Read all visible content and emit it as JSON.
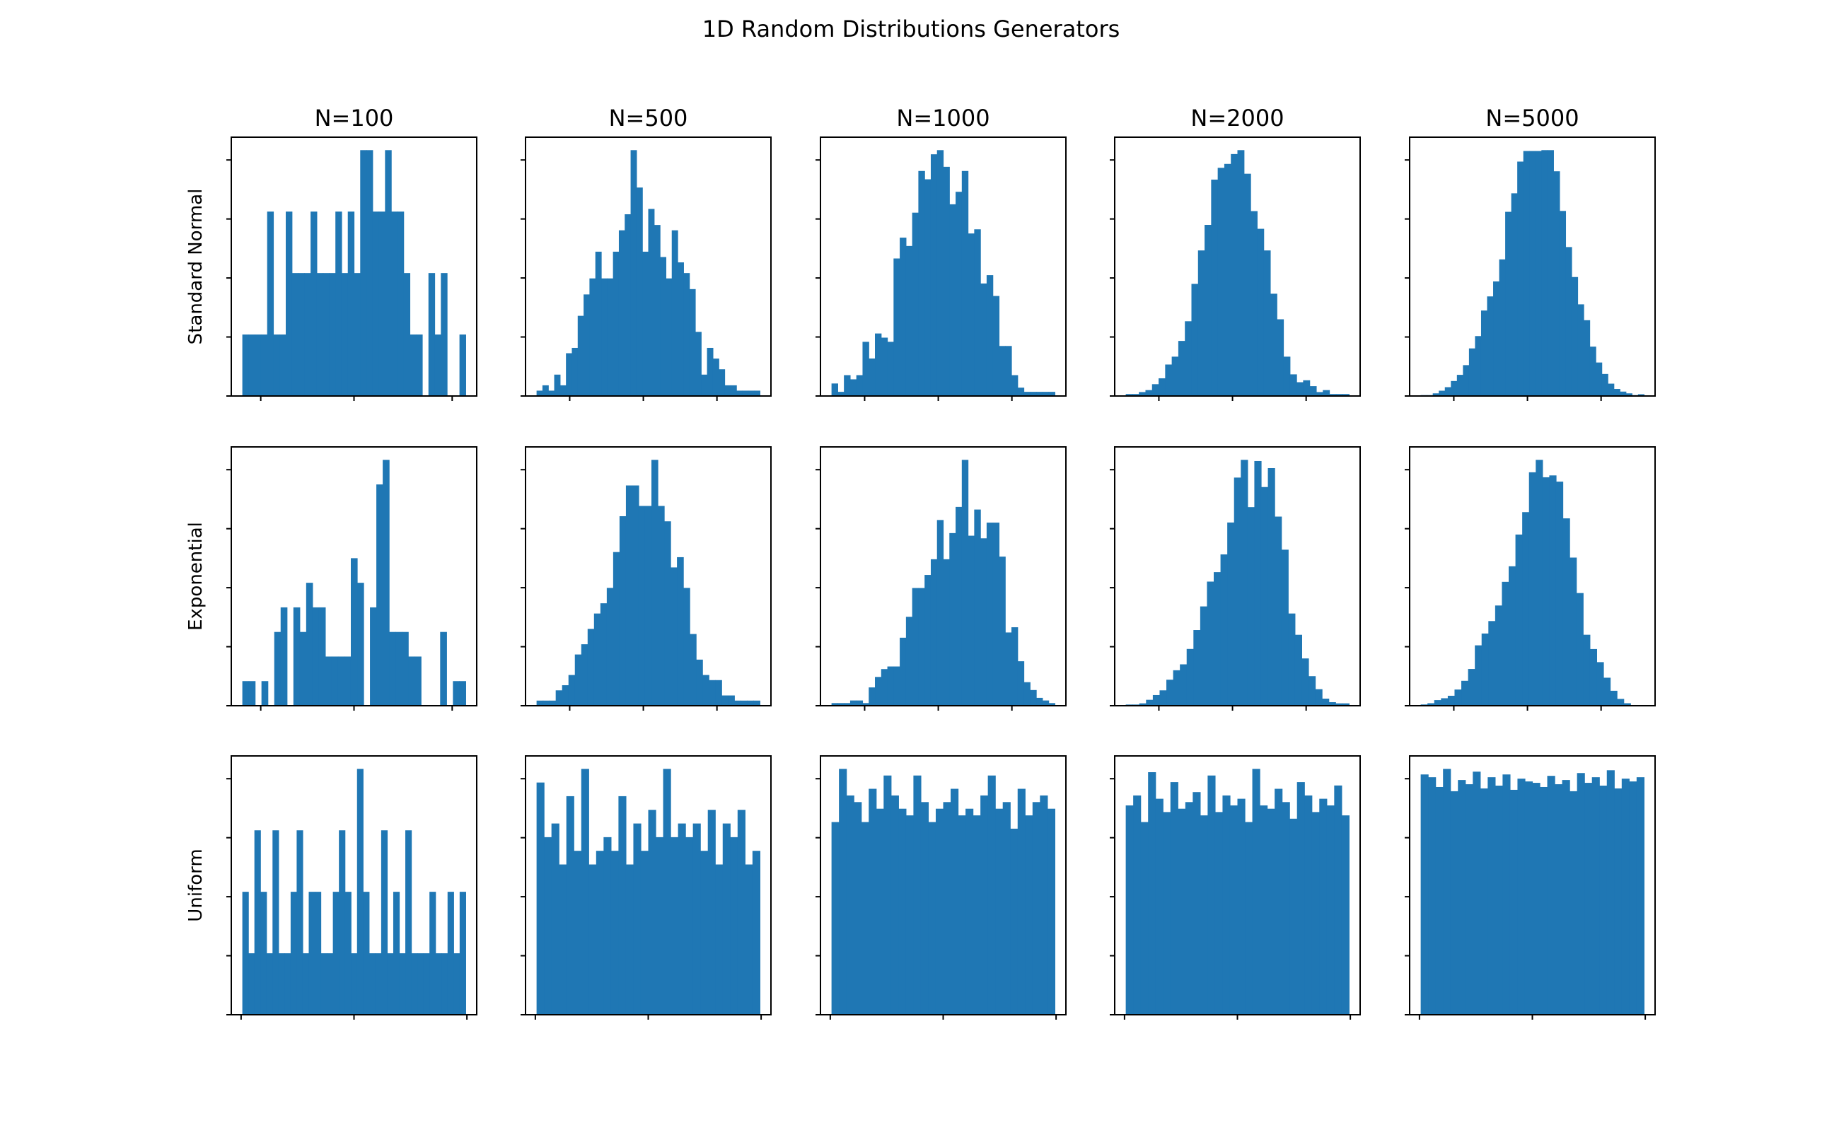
{
  "title": "1D Random Distributions Generators",
  "column_titles": [
    "N=100",
    "N=500",
    "N=1000",
    "N=2000",
    "N=5000"
  ],
  "row_labels": [
    "Standard Normal",
    "Exponential",
    "Uniform"
  ],
  "colors": {
    "bar": "#1f77b4",
    "axis": "#000000"
  },
  "chart_data": [
    {
      "type": "bar",
      "row": 0,
      "col": 0,
      "title": "N=100",
      "ylabel": "Standard Normal",
      "counts": [
        1,
        1,
        1,
        1,
        3,
        1,
        1,
        3,
        2,
        2,
        2,
        3,
        2,
        2,
        2,
        3,
        2,
        3,
        2,
        4,
        4,
        3,
        3,
        4,
        3,
        3,
        2,
        1,
        1,
        0,
        2,
        1,
        2,
        0,
        0,
        1
      ]
    },
    {
      "type": "bar",
      "row": 0,
      "col": 1,
      "title": "N=500",
      "ylabel": "Standard Normal",
      "counts": [
        1,
        2,
        1,
        4,
        2,
        8,
        9,
        15,
        19,
        22,
        27,
        22,
        22,
        27,
        31,
        34,
        46,
        39,
        27,
        35,
        32,
        26,
        22,
        31,
        25,
        23,
        20,
        12,
        4,
        9,
        7,
        5,
        2,
        2,
        1,
        1,
        1,
        1
      ]
    },
    {
      "type": "bar",
      "row": 0,
      "col": 2,
      "title": "N=1000",
      "ylabel": "Standard Normal",
      "counts": [
        3,
        1,
        5,
        4,
        5,
        13,
        9,
        15,
        14,
        13,
        33,
        38,
        36,
        44,
        54,
        52,
        58,
        59,
        55,
        46,
        49,
        54,
        39,
        40,
        27,
        29,
        24,
        12,
        12,
        5,
        2,
        1,
        1,
        1,
        1,
        1
      ]
    },
    {
      "type": "bar",
      "row": 0,
      "col": 3,
      "title": "N=2000",
      "ylabel": "Standard Normal",
      "counts": [
        1,
        1,
        2,
        3,
        6,
        9,
        16,
        20,
        28,
        38,
        57,
        74,
        87,
        110,
        116,
        118,
        123,
        125,
        113,
        94,
        85,
        74,
        52,
        39,
        20,
        11,
        7,
        8,
        5,
        2,
        3,
        1,
        1,
        1
      ]
    },
    {
      "type": "bar",
      "row": 0,
      "col": 4,
      "title": "N=5000",
      "ylabel": "Standard Normal",
      "counts": [
        1,
        1,
        3,
        6,
        10,
        17,
        24,
        35,
        54,
        68,
        97,
        113,
        130,
        155,
        209,
        230,
        266,
        278,
        278,
        278,
        279,
        279,
        255,
        210,
        169,
        135,
        104,
        86,
        56,
        38,
        25,
        14,
        8,
        5,
        3,
        1,
        2
      ]
    },
    {
      "type": "bar",
      "row": 1,
      "col": 0,
      "title": "N=100",
      "ylabel": "Exponential",
      "counts": [
        1,
        1,
        0,
        1,
        0,
        3,
        4,
        0,
        4,
        3,
        5,
        4,
        4,
        2,
        2,
        2,
        2,
        6,
        5,
        0,
        4,
        9,
        10,
        3,
        3,
        3,
        2,
        2,
        0,
        0,
        0,
        3,
        0,
        1,
        1
      ]
    },
    {
      "type": "bar",
      "row": 1,
      "col": 1,
      "title": "N=500",
      "ylabel": "Exponential",
      "counts": [
        1,
        1,
        1,
        3,
        4,
        6,
        10,
        12,
        15,
        18,
        20,
        23,
        30,
        37,
        43,
        43,
        39,
        39,
        48,
        39,
        36,
        27,
        29,
        23,
        14,
        9,
        6,
        5,
        5,
        2,
        2,
        1,
        1,
        1,
        1
      ]
    },
    {
      "type": "bar",
      "row": 1,
      "col": 2,
      "title": "N=1000",
      "ylabel": "Exponential",
      "counts": [
        1,
        1,
        1,
        2,
        2,
        1,
        7,
        11,
        14,
        15,
        15,
        26,
        34,
        45,
        45,
        50,
        56,
        71,
        56,
        66,
        76,
        94,
        65,
        75,
        64,
        70,
        70,
        57,
        28,
        30,
        17,
        9,
        6,
        3,
        2,
        1
      ]
    },
    {
      "type": "bar",
      "row": 1,
      "col": 3,
      "title": "N=2000",
      "ylabel": "Exponential",
      "counts": [
        1,
        1,
        2,
        5,
        9,
        13,
        22,
        30,
        35,
        48,
        64,
        84,
        105,
        113,
        128,
        155,
        193,
        208,
        168,
        207,
        185,
        201,
        160,
        132,
        78,
        60,
        40,
        25,
        14,
        6,
        3,
        2,
        2
      ]
    },
    {
      "type": "bar",
      "row": 1,
      "col": 4,
      "title": "N=5000",
      "ylabel": "Exponential",
      "counts": [
        2,
        4,
        9,
        12,
        16,
        26,
        40,
        59,
        97,
        116,
        136,
        161,
        199,
        224,
        275,
        311,
        375,
        395,
        367,
        370,
        360,
        301,
        238,
        181,
        114,
        91,
        70,
        45,
        24,
        11,
        4,
        1,
        1
      ]
    },
    {
      "type": "bar",
      "row": 2,
      "col": 0,
      "title": "N=100",
      "ylabel": "Uniform",
      "counts": [
        2,
        1,
        3,
        2,
        1,
        3,
        1,
        1,
        2,
        3,
        1,
        2,
        2,
        1,
        1,
        2,
        3,
        2,
        1,
        4,
        2,
        1,
        1,
        3,
        1,
        2,
        1,
        3,
        1,
        1,
        1,
        2,
        1,
        1,
        2,
        1,
        2
      ]
    },
    {
      "type": "bar",
      "row": 2,
      "col": 1,
      "title": "N=500",
      "ylabel": "Uniform",
      "counts": [
        17,
        13,
        14,
        11,
        16,
        12,
        18,
        11,
        12,
        13,
        12,
        16,
        11,
        14,
        12,
        15,
        13,
        18,
        13,
        14,
        13,
        14,
        12,
        15,
        11,
        14,
        13,
        15,
        11,
        12
      ]
    },
    {
      "type": "bar",
      "row": 2,
      "col": 2,
      "title": "N=1000",
      "ylabel": "Uniform",
      "counts": [
        29,
        37,
        33,
        32,
        29,
        34,
        31,
        36,
        33,
        31,
        30,
        36,
        32,
        29,
        31,
        32,
        34,
        30,
        31,
        30,
        33,
        36,
        31,
        32,
        28,
        34,
        30,
        32,
        33,
        31
      ]
    },
    {
      "type": "bar",
      "row": 2,
      "col": 3,
      "title": "N=2000",
      "ylabel": "Uniform",
      "counts": [
        63,
        66,
        58,
        73,
        65,
        61,
        70,
        62,
        64,
        67,
        60,
        72,
        61,
        66,
        63,
        65,
        58,
        74,
        63,
        62,
        68,
        64,
        59,
        70,
        66,
        61,
        65,
        63,
        69,
        60
      ]
    },
    {
      "type": "bar",
      "row": 2,
      "col": 4,
      "title": "N=5000",
      "ylabel": "Uniform",
      "counts": [
        172,
        170,
        163,
        176,
        160,
        168,
        165,
        174,
        162,
        170,
        164,
        172,
        161,
        169,
        167,
        166,
        163,
        171,
        165,
        168,
        160,
        173,
        166,
        170,
        164,
        175,
        162,
        169,
        167,
        170
      ]
    }
  ]
}
